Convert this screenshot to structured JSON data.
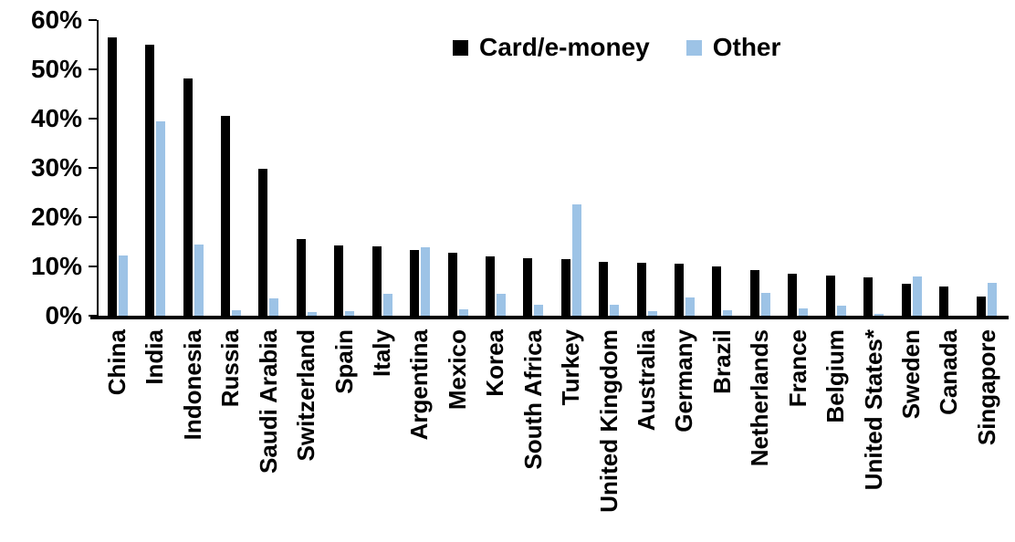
{
  "chart_data": {
    "type": "bar",
    "title": "",
    "xlabel": "",
    "ylabel": "",
    "ylim": [
      0,
      60
    ],
    "grid": false,
    "legend_position": "top-center",
    "y_ticks": [
      {
        "label": "60%",
        "value": 60
      },
      {
        "label": "50%",
        "value": 50
      },
      {
        "label": "40%",
        "value": 40
      },
      {
        "label": "30%",
        "value": 30
      },
      {
        "label": "20%",
        "value": 20
      },
      {
        "label": "10%",
        "value": 10
      },
      {
        "label": "0%",
        "value": 0
      }
    ],
    "categories": [
      "China",
      "India",
      "Indonesia",
      "Russia",
      "Saudi Arabia",
      "Switzerland",
      "Spain",
      "Italy",
      "Argentina",
      "Mexico",
      "Korea",
      "South Africa",
      "Turkey",
      "United Kingdom",
      "Australia",
      "Germany",
      "Brazil",
      "Netherlands",
      "France",
      "Belgium",
      "United States*",
      "Sweden",
      "Canada",
      "Singapore"
    ],
    "series": [
      {
        "name": "Card/e-money",
        "color": "#000000",
        "values": [
          56.4,
          55.1,
          48.1,
          40.5,
          29.8,
          15.5,
          14.2,
          14.0,
          13.3,
          12.8,
          12.1,
          11.7,
          11.5,
          11.0,
          10.7,
          10.5,
          10.0,
          9.2,
          8.6,
          8.1,
          7.8,
          6.5,
          6.0,
          3.9
        ]
      },
      {
        "name": "Other",
        "color": "#9DC3E6",
        "values": [
          12.3,
          39.5,
          14.4,
          1.1,
          3.6,
          0.7,
          0.9,
          4.4,
          13.9,
          1.3,
          4.5,
          2.3,
          22.6,
          2.3,
          1.0,
          3.8,
          1.2,
          4.7,
          1.5,
          2.0,
          0.3,
          8.0,
          0,
          6.6
        ]
      }
    ]
  }
}
